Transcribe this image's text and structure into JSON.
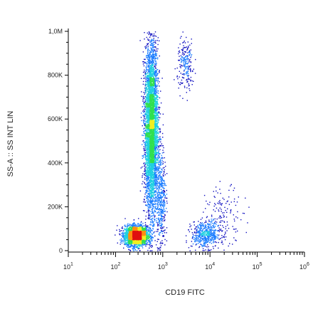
{
  "chart_data": {
    "type": "scatter",
    "subtype": "flow-cytometry-density-dot-plot",
    "title": "",
    "xlabel": "CD19 FITC",
    "ylabel": "SS-A :: SS INT LIN",
    "x_scale": "log",
    "y_scale": "linear",
    "xlim": [
      10,
      1000000
    ],
    "ylim": [
      0,
      1000000
    ],
    "x_ticks": [
      {
        "value": 10,
        "base": "10",
        "exp": "1"
      },
      {
        "value": 100,
        "base": "10",
        "exp": "2"
      },
      {
        "value": 1000,
        "base": "10",
        "exp": "3"
      },
      {
        "value": 10000,
        "base": "10",
        "exp": "4"
      },
      {
        "value": 100000,
        "base": "10",
        "exp": "5"
      },
      {
        "value": 1000000,
        "base": "10",
        "exp": "6"
      }
    ],
    "y_ticks": [
      {
        "value": 0,
        "label": "0"
      },
      {
        "value": 200000,
        "label": "200K"
      },
      {
        "value": 400000,
        "label": "400K"
      },
      {
        "value": 600000,
        "label": "600K"
      },
      {
        "value": 800000,
        "label": "800K"
      },
      {
        "value": 1000000,
        "label": "1,0M"
      }
    ],
    "grid": false,
    "legend": "none",
    "color_scale": [
      "#1010c0",
      "#1a7cff",
      "#20d0e0",
      "#30e050",
      "#f0f020",
      "#ff9010",
      "#e01010"
    ],
    "populations": [
      {
        "x_center": 270,
        "y_center": 70000,
        "x_log_sd": 0.12,
        "y_sd": 22000,
        "weight": 0.32,
        "density": "high"
      },
      {
        "x_center": 560,
        "y_center": 560000,
        "x_log_sd": 0.07,
        "y_sd": 190000,
        "weight": 0.52,
        "density": "high"
      },
      {
        "x_center": 900,
        "y_center": 250000,
        "x_log_sd": 0.05,
        "y_sd": 120000,
        "weight": 0.05,
        "density": "medium"
      },
      {
        "x_center": 3000,
        "y_center": 850000,
        "x_log_sd": 0.09,
        "y_sd": 60000,
        "weight": 0.025,
        "density": "low"
      },
      {
        "x_center": 8000,
        "y_center": 75000,
        "x_log_sd": 0.15,
        "y_sd": 30000,
        "weight": 0.06,
        "density": "medium"
      },
      {
        "x_center": 20000,
        "y_center": 170000,
        "x_log_sd": 0.2,
        "y_sd": 60000,
        "weight": 0.015,
        "density": "low"
      }
    ]
  }
}
